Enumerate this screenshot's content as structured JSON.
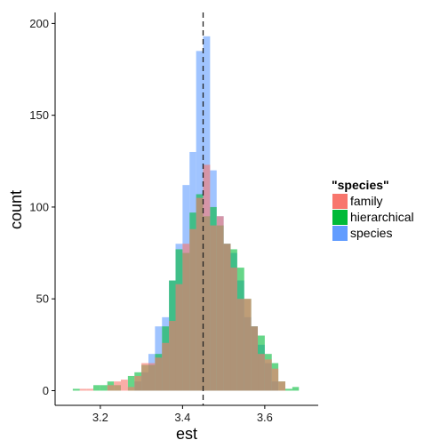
{
  "chart_data": {
    "type": "bar",
    "subtype": "overlapping-histogram",
    "xlabel": "est",
    "ylabel": "count",
    "xlim": [
      3.09,
      3.73
    ],
    "ylim": [
      -8,
      206
    ],
    "x_ticks": [
      3.2,
      3.4,
      3.6
    ],
    "x_tick_labels": [
      "3.2",
      "3.4",
      "3.6"
    ],
    "y_ticks": [
      0,
      50,
      100,
      150,
      200
    ],
    "y_tick_labels": [
      "0",
      "50",
      "100",
      "150",
      "200"
    ],
    "grid": false,
    "legend": {
      "title": "\"species\"",
      "position": "right",
      "entries": [
        "family",
        "hierarchical",
        "species"
      ]
    },
    "vline": {
      "x": 3.45,
      "style": "dashed"
    },
    "bin_width": 0.01667,
    "bin_edges": [
      3.133,
      3.15,
      3.167,
      3.183,
      3.2,
      3.217,
      3.233,
      3.25,
      3.267,
      3.283,
      3.3,
      3.317,
      3.333,
      3.35,
      3.367,
      3.383,
      3.4,
      3.417,
      3.433,
      3.45,
      3.467,
      3.483,
      3.5,
      3.517,
      3.533,
      3.55,
      3.567,
      3.583,
      3.6,
      3.617,
      3.633,
      3.65,
      3.667,
      3.683,
      3.7
    ],
    "series": [
      {
        "name": "family",
        "color": "#F8766D",
        "values": [
          0,
          1,
          1,
          0,
          0,
          3,
          5,
          6,
          2,
          8,
          15,
          15,
          18,
          26,
          38,
          58,
          80,
          88,
          105,
          123,
          90,
          95,
          80,
          67,
          50,
          50,
          35,
          20,
          17,
          12,
          5,
          0,
          0,
          0
        ]
      },
      {
        "name": "hierarchical",
        "color": "#00BA38",
        "values": [
          1,
          0,
          0,
          3,
          3,
          5,
          3,
          0,
          8,
          10,
          14,
          14,
          20,
          35,
          60,
          77,
          75,
          97,
          107,
          95,
          100,
          90,
          80,
          77,
          67,
          50,
          35,
          30,
          20,
          15,
          5,
          1,
          2,
          0
        ]
      },
      {
        "name": "species",
        "color": "#619CFF",
        "values": [
          0,
          0,
          0,
          0,
          0,
          0,
          0,
          0,
          0,
          5,
          10,
          20,
          35,
          40,
          60,
          80,
          112,
          130,
          185,
          193,
          120,
          95,
          80,
          75,
          60,
          40,
          35,
          25,
          15,
          5,
          0,
          0,
          0,
          0
        ]
      }
    ]
  }
}
